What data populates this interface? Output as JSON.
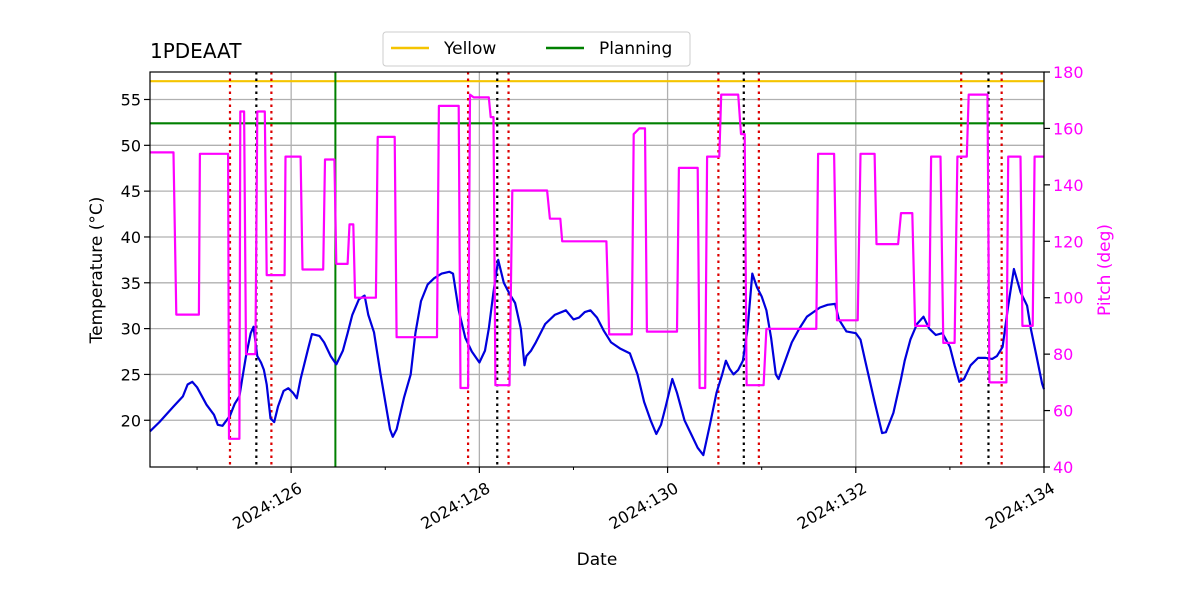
{
  "chart_data": {
    "type": "line",
    "title": "1PDEAAT",
    "xlabel": "Date",
    "ylabel_left": "Temperature ($^\\circ$C)",
    "ylabel_left_display": "Temperature (°C)",
    "ylabel_right": "Pitch (deg)",
    "xlim": [
      124.5,
      134.0
    ],
    "ylim_left": [
      14.9,
      58.0
    ],
    "ylim_right": [
      40,
      180
    ],
    "x_ticks": [
      {
        "value": 126,
        "label": "2024:126"
      },
      {
        "value": 128,
        "label": "2024:128"
      },
      {
        "value": 130,
        "label": "2024:130"
      },
      {
        "value": 132,
        "label": "2024:132"
      },
      {
        "value": 134,
        "label": "2024:134"
      }
    ],
    "y_ticks_left": [
      20,
      25,
      30,
      35,
      40,
      45,
      50,
      55
    ],
    "y_ticks_right": [
      40,
      60,
      80,
      100,
      120,
      140,
      160,
      180
    ],
    "grid": true,
    "legend": {
      "placement": "top-center",
      "entries": [
        {
          "name": "Yellow",
          "color": "#f5c400"
        },
        {
          "name": "Planning",
          "color": "#008000"
        }
      ]
    },
    "limit_lines": [
      {
        "name": "Yellow",
        "value": 57.0,
        "color": "#f5c400"
      },
      {
        "name": "Planning",
        "value": 52.4,
        "color": "#008000"
      }
    ],
    "vertical_lines": {
      "green_solid": [
        126.47
      ],
      "red_dotted": [
        125.35,
        125.79,
        127.88,
        128.31,
        130.54,
        130.97,
        133.12,
        133.55
      ],
      "black_dotted": [
        125.63,
        128.19,
        130.81,
        133.41
      ]
    },
    "colors": {
      "temperature": "#0000dd",
      "pitch": "#ff00ff",
      "pitch_axis": "#ff00ff",
      "red_dotted": "#dd0000",
      "black_dotted": "#000000",
      "grid": "#b0b0b0"
    },
    "series": [
      {
        "name": "Temperature",
        "axis": "left",
        "points": [
          [
            124.5,
            18.8
          ],
          [
            124.6,
            19.8
          ],
          [
            124.75,
            21.5
          ],
          [
            124.85,
            22.6
          ],
          [
            124.9,
            23.9
          ],
          [
            124.95,
            24.2
          ],
          [
            125.0,
            23.6
          ],
          [
            125.1,
            21.7
          ],
          [
            125.18,
            20.6
          ],
          [
            125.22,
            19.5
          ],
          [
            125.27,
            19.4
          ],
          [
            125.35,
            20.5
          ],
          [
            125.4,
            21.8
          ],
          [
            125.45,
            22.6
          ],
          [
            125.48,
            24.5
          ],
          [
            125.52,
            27.0
          ],
          [
            125.57,
            29.5
          ],
          [
            125.6,
            30.2
          ],
          [
            125.64,
            27.0
          ],
          [
            125.68,
            26.3
          ],
          [
            125.71,
            25.5
          ],
          [
            125.74,
            23.9
          ],
          [
            125.78,
            20.2
          ],
          [
            125.82,
            19.8
          ],
          [
            125.86,
            21.5
          ],
          [
            125.92,
            23.2
          ],
          [
            125.97,
            23.5
          ],
          [
            126.02,
            23.0
          ],
          [
            126.06,
            22.4
          ],
          [
            126.1,
            24.5
          ],
          [
            126.18,
            27.8
          ],
          [
            126.22,
            29.4
          ],
          [
            126.3,
            29.2
          ],
          [
            126.35,
            28.5
          ],
          [
            126.42,
            27.0
          ],
          [
            126.48,
            26.1
          ],
          [
            126.55,
            27.6
          ],
          [
            126.6,
            29.5
          ],
          [
            126.65,
            31.5
          ],
          [
            126.72,
            33.2
          ],
          [
            126.78,
            33.6
          ],
          [
            126.82,
            31.5
          ],
          [
            126.88,
            29.6
          ],
          [
            126.95,
            25.0
          ],
          [
            127.0,
            22.0
          ],
          [
            127.05,
            19.0
          ],
          [
            127.08,
            18.2
          ],
          [
            127.12,
            19.0
          ],
          [
            127.2,
            22.5
          ],
          [
            127.27,
            25.0
          ],
          [
            127.32,
            29.5
          ],
          [
            127.38,
            33.0
          ],
          [
            127.45,
            34.8
          ],
          [
            127.52,
            35.5
          ],
          [
            127.6,
            36.0
          ],
          [
            127.68,
            36.2
          ],
          [
            127.72,
            36.0
          ],
          [
            127.78,
            32.0
          ],
          [
            127.85,
            29.0
          ],
          [
            127.92,
            27.5
          ],
          [
            128.0,
            26.3
          ],
          [
            128.06,
            27.6
          ],
          [
            128.1,
            30.0
          ],
          [
            128.15,
            34.0
          ],
          [
            128.2,
            37.5
          ],
          [
            128.26,
            35.0
          ],
          [
            128.32,
            33.8
          ],
          [
            128.38,
            32.8
          ],
          [
            128.44,
            30.0
          ],
          [
            128.48,
            26.0
          ],
          [
            128.5,
            27.0
          ],
          [
            128.55,
            27.6
          ],
          [
            128.6,
            28.5
          ],
          [
            128.7,
            30.5
          ],
          [
            128.8,
            31.5
          ],
          [
            128.92,
            32.0
          ],
          [
            129.0,
            31.0
          ],
          [
            129.06,
            31.2
          ],
          [
            129.12,
            31.8
          ],
          [
            129.18,
            32.0
          ],
          [
            129.25,
            31.2
          ],
          [
            129.32,
            29.8
          ],
          [
            129.4,
            28.5
          ],
          [
            129.5,
            27.8
          ],
          [
            129.6,
            27.3
          ],
          [
            129.68,
            25.0
          ],
          [
            129.75,
            22.0
          ],
          [
            129.82,
            20.0
          ],
          [
            129.88,
            18.5
          ],
          [
            129.93,
            19.5
          ],
          [
            129.98,
            21.5
          ],
          [
            130.05,
            24.5
          ],
          [
            130.1,
            23.0
          ],
          [
            130.18,
            20.0
          ],
          [
            130.25,
            18.5
          ],
          [
            130.32,
            17.0
          ],
          [
            130.38,
            16.2
          ],
          [
            130.45,
            19.5
          ],
          [
            130.52,
            23.0
          ],
          [
            130.58,
            25.0
          ],
          [
            130.62,
            26.5
          ],
          [
            130.66,
            25.6
          ],
          [
            130.7,
            25.0
          ],
          [
            130.75,
            25.5
          ],
          [
            130.8,
            26.5
          ],
          [
            130.85,
            30.0
          ],
          [
            130.9,
            36.0
          ],
          [
            130.95,
            34.5
          ],
          [
            131.0,
            33.5
          ],
          [
            131.05,
            32.0
          ],
          [
            131.1,
            29.0
          ],
          [
            131.15,
            25.0
          ],
          [
            131.18,
            24.5
          ],
          [
            131.25,
            26.5
          ],
          [
            131.32,
            28.5
          ],
          [
            131.4,
            30.0
          ],
          [
            131.48,
            31.3
          ],
          [
            131.55,
            31.8
          ],
          [
            131.62,
            32.3
          ],
          [
            131.7,
            32.6
          ],
          [
            131.78,
            32.7
          ],
          [
            131.82,
            31.0
          ],
          [
            131.9,
            29.7
          ],
          [
            132.0,
            29.5
          ],
          [
            132.05,
            28.8
          ],
          [
            132.1,
            26.5
          ],
          [
            132.2,
            22.0
          ],
          [
            132.28,
            18.6
          ],
          [
            132.32,
            18.7
          ],
          [
            132.4,
            20.8
          ],
          [
            132.48,
            24.5
          ],
          [
            132.52,
            26.5
          ],
          [
            132.58,
            28.8
          ],
          [
            132.65,
            30.5
          ],
          [
            132.72,
            31.3
          ],
          [
            132.78,
            30.0
          ],
          [
            132.85,
            29.3
          ],
          [
            132.92,
            29.5
          ],
          [
            133.0,
            28.0
          ],
          [
            133.05,
            26.0
          ],
          [
            133.1,
            24.2
          ],
          [
            133.15,
            24.5
          ],
          [
            133.22,
            26.0
          ],
          [
            133.3,
            26.8
          ],
          [
            133.38,
            26.8
          ],
          [
            133.45,
            26.7
          ],
          [
            133.5,
            27.0
          ],
          [
            133.56,
            28.0
          ],
          [
            133.62,
            32.5
          ],
          [
            133.68,
            36.5
          ],
          [
            133.75,
            34.0
          ],
          [
            133.82,
            32.5
          ],
          [
            133.86,
            30.0
          ],
          [
            133.92,
            27.0
          ],
          [
            133.98,
            24.0
          ],
          [
            134.0,
            23.4
          ]
        ]
      },
      {
        "name": "Pitch",
        "axis": "right",
        "points": [
          [
            124.5,
            151.5
          ],
          [
            124.75,
            151.5
          ],
          [
            124.75,
            151
          ],
          [
            124.78,
            94
          ],
          [
            125.02,
            94
          ],
          [
            125.03,
            151
          ],
          [
            125.33,
            151
          ],
          [
            125.34,
            50
          ],
          [
            125.45,
            50
          ],
          [
            125.46,
            166
          ],
          [
            125.5,
            166
          ],
          [
            125.52,
            80
          ],
          [
            125.62,
            80
          ],
          [
            125.64,
            166
          ],
          [
            125.72,
            166
          ],
          [
            125.74,
            108
          ],
          [
            125.93,
            108
          ],
          [
            125.94,
            150
          ],
          [
            126.1,
            150
          ],
          [
            126.12,
            110
          ],
          [
            126.34,
            110
          ],
          [
            126.36,
            149
          ],
          [
            126.46,
            149
          ],
          [
            126.48,
            112
          ],
          [
            126.6,
            112
          ],
          [
            126.62,
            126
          ],
          [
            126.66,
            126
          ],
          [
            126.68,
            100
          ],
          [
            126.9,
            100
          ],
          [
            126.92,
            157
          ],
          [
            127.1,
            157
          ],
          [
            127.12,
            86
          ],
          [
            127.55,
            86
          ],
          [
            127.57,
            168
          ],
          [
            127.78,
            168
          ],
          [
            127.8,
            68
          ],
          [
            127.88,
            68
          ],
          [
            127.9,
            172
          ],
          [
            127.94,
            171
          ],
          [
            128.1,
            171
          ],
          [
            128.12,
            164
          ],
          [
            128.15,
            164
          ],
          [
            128.17,
            69
          ],
          [
            128.32,
            69
          ],
          [
            128.35,
            138
          ],
          [
            128.72,
            138
          ],
          [
            128.75,
            128
          ],
          [
            128.86,
            128
          ],
          [
            128.88,
            120
          ],
          [
            129.35,
            120
          ],
          [
            129.38,
            87
          ],
          [
            129.62,
            87
          ],
          [
            129.64,
            158
          ],
          [
            129.7,
            160
          ],
          [
            129.76,
            160
          ],
          [
            129.78,
            88
          ],
          [
            130.1,
            88
          ],
          [
            130.12,
            146
          ],
          [
            130.32,
            146
          ],
          [
            130.34,
            68
          ],
          [
            130.4,
            68
          ],
          [
            130.42,
            150
          ],
          [
            130.55,
            150
          ],
          [
            130.57,
            172
          ],
          [
            130.75,
            172
          ],
          [
            130.78,
            158
          ],
          [
            130.82,
            158
          ],
          [
            130.84,
            69
          ],
          [
            131.02,
            69
          ],
          [
            131.05,
            89
          ],
          [
            131.58,
            89
          ],
          [
            131.6,
            151
          ],
          [
            131.77,
            151
          ],
          [
            131.8,
            92
          ],
          [
            132.02,
            92
          ],
          [
            132.05,
            151
          ],
          [
            132.2,
            151
          ],
          [
            132.22,
            119
          ],
          [
            132.45,
            119
          ],
          [
            132.48,
            130
          ],
          [
            132.6,
            130
          ],
          [
            132.63,
            90
          ],
          [
            132.78,
            90
          ],
          [
            132.8,
            150
          ],
          [
            132.9,
            150
          ],
          [
            132.93,
            84
          ],
          [
            133.05,
            84
          ],
          [
            133.08,
            150
          ],
          [
            133.18,
            150
          ],
          [
            133.2,
            172
          ],
          [
            133.4,
            172
          ],
          [
            133.42,
            70
          ],
          [
            133.6,
            70
          ],
          [
            133.62,
            150
          ],
          [
            133.75,
            150
          ],
          [
            133.77,
            90
          ],
          [
            133.88,
            90
          ],
          [
            133.9,
            150
          ],
          [
            134.0,
            150
          ]
        ]
      }
    ]
  }
}
